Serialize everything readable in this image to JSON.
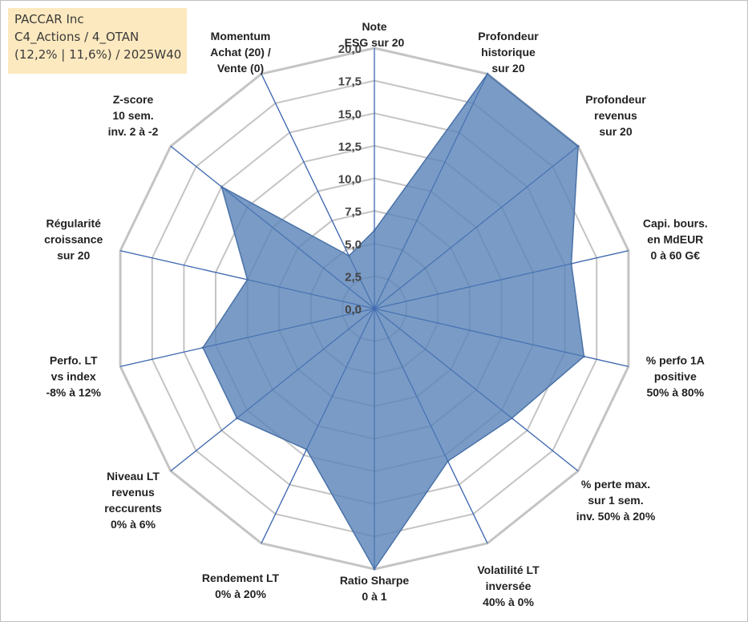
{
  "header": {
    "company": "PACCAR Inc",
    "category": "C4_Actions / 4_OTAN",
    "stats": "(12,2% | 11,6%) / 2025W40"
  },
  "colors": {
    "fill": "#5b85b8",
    "stroke": "#4a72a8",
    "spoke": "#3d67b0",
    "grid": "#c4c4c4"
  },
  "chart_data": {
    "type": "radar",
    "rmin": 0,
    "rmax": 20,
    "ticks": [
      "0,0",
      "2,5",
      "5,0",
      "7,5",
      "10,0",
      "12,5",
      "15,0",
      "17,5",
      "20,0"
    ],
    "tick_values": [
      0,
      2.5,
      5,
      7.5,
      10,
      12.5,
      15,
      17.5,
      20
    ],
    "axes": [
      {
        "label": [
          "Note",
          "ESG sur 20"
        ],
        "value": 6
      },
      {
        "label": [
          "Profondeur",
          "historique",
          "sur 20"
        ],
        "value": 20
      },
      {
        "label": [
          "Profondeur",
          "revenus",
          "sur 20"
        ],
        "value": 20
      },
      {
        "label": [
          "Capi. bours.",
          "en MdEUR",
          "0 à 60 G€"
        ],
        "value": 15.5
      },
      {
        "label": [
          "% perfo 1A",
          "positive",
          "50% à 80%"
        ],
        "value": 16.5
      },
      {
        "label": [
          "% perte max.",
          "sur 1 sem.",
          "inv. 50% à 20%"
        ],
        "value": 13.5
      },
      {
        "label": [
          "Volatilité LT",
          "inversée",
          "40% à 0%"
        ],
        "value": 13
      },
      {
        "label": [
          "Ratio Sharpe",
          "0 à 1"
        ],
        "value": 20
      },
      {
        "label": [
          "Rendement LT",
          "0% à 20%"
        ],
        "value": 12
      },
      {
        "label": [
          "Niveau LT",
          "revenus",
          "reccurents",
          "0% à 6%"
        ],
        "value": 13.5
      },
      {
        "label": [
          "Perfo. LT",
          "vs index",
          "-8% à 12%"
        ],
        "value": 13.5
      },
      {
        "label": [
          "Régularité",
          "croissance",
          "sur 20"
        ],
        "value": 10
      },
      {
        "label": [
          "Z-score",
          "10 sem.",
          "inv. 2 à -2"
        ],
        "value": 15
      },
      {
        "label": [
          "Momentum",
          "Achat (20) /",
          "Vente (0)"
        ],
        "value": 4.5
      }
    ]
  }
}
